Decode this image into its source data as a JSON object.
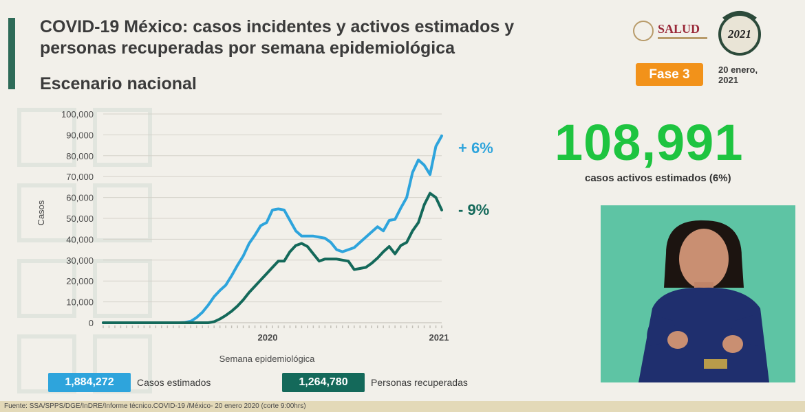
{
  "header": {
    "title": "COVID-19 México: casos incidentes y activos estimados y personas recuperadas por semana epidemiológica",
    "subtitle": "Escenario nacional",
    "salud_label": "SALUD",
    "year_label": "2021",
    "fase": "Fase 3",
    "date": "20 enero, 2021"
  },
  "stats": {
    "active_value": "108,991",
    "active_caption": "casos activos estimados (6%)"
  },
  "legend": {
    "estimated_value": "1,884,272",
    "estimated_label": "Casos estimados",
    "recovered_value": "1,264,780",
    "recovered_label": "Personas recuperadas"
  },
  "footer": {
    "source": "Fuente: SSA/SPPS/DGE/InDRE/Informe técnico.COVID-19 /México- 20 enero 2020 (corte 9:00hrs)"
  },
  "colors": {
    "estimated": "#2ea4dc",
    "recovered": "#14695a",
    "highlight": "#1ec440",
    "fase": "#f2921a"
  },
  "chart_data": {
    "type": "line",
    "title": "",
    "xlabel": "Semana epidemiológica",
    "ylabel": "Casos",
    "ylim": [
      0,
      100000
    ],
    "yticks": [
      "0",
      "10,000",
      "20,000",
      "30,000",
      "40,000",
      "50,000",
      "60,000",
      "70,000",
      "80,000",
      "90,000",
      "100,000"
    ],
    "x_year_labels": [
      {
        "week_index": 34,
        "label": "2020"
      },
      {
        "week_index": 70,
        "label": "2021"
      }
    ],
    "grid": "horizontal",
    "series": [
      {
        "name": "Casos estimados",
        "change_label": "+ 6%",
        "values": [
          0,
          0,
          0,
          0,
          0,
          0,
          0,
          0,
          0,
          0,
          0,
          0,
          0,
          0,
          150,
          700,
          2500,
          5000,
          8500,
          12500,
          15500,
          18000,
          22500,
          27500,
          32000,
          38000,
          42000,
          46500,
          48000,
          54000,
          54500,
          54000,
          49000,
          44000,
          41500,
          41500,
          41500,
          41000,
          40500,
          38500,
          35000,
          34000,
          35000,
          36000,
          38500,
          41000,
          43500,
          46000,
          44000,
          49000,
          49500,
          55000,
          60000,
          72000,
          78000,
          75500,
          71000,
          84500,
          89500
        ]
      },
      {
        "name": "Personas recuperadas",
        "change_label": "- 9%",
        "values": [
          0,
          0,
          0,
          0,
          0,
          0,
          0,
          0,
          0,
          0,
          0,
          0,
          0,
          0,
          0,
          0,
          0,
          0,
          0,
          500,
          1800,
          3500,
          5500,
          8000,
          11000,
          14500,
          17500,
          20500,
          23500,
          26500,
          29500,
          29500,
          34000,
          37000,
          38000,
          36500,
          33000,
          29500,
          30500,
          30500,
          30500,
          30000,
          29500,
          25500,
          26000,
          26500,
          28500,
          31000,
          34000,
          36500,
          33000,
          37000,
          38500,
          44000,
          48000,
          56500,
          62000,
          60000,
          54000
        ]
      }
    ]
  }
}
